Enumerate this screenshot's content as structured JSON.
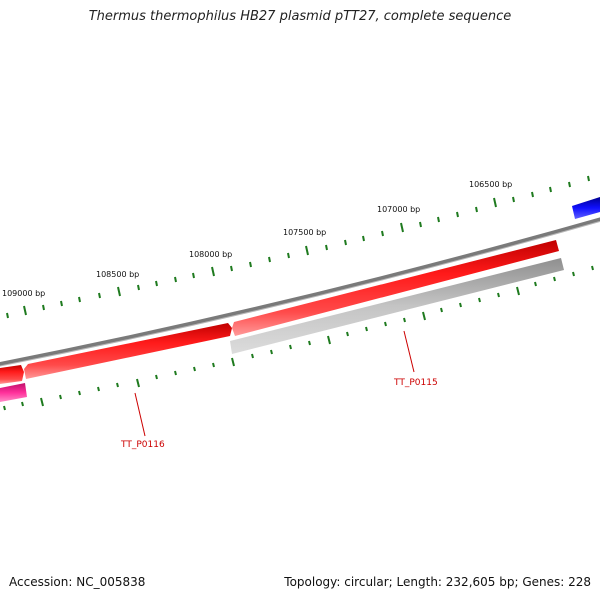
{
  "title": "Thermus thermophilus HB27 plasmid pTT27, complete sequence",
  "accession": "Accession: NC_005838",
  "summary": "Topology: circular; Length: 232,605 bp; Genes: 228",
  "ruler_labels": [
    "106500 bp",
    "107000 bp",
    "107500 bp",
    "108000 bp",
    "108500 bp",
    "109000 bp"
  ],
  "gene_labels": [
    "TT_P0115",
    "TT_P0116"
  ],
  "colors": {
    "backbone": "#7a7a7a",
    "forward_gene": "#ff0000",
    "reverse_gene_gray": "#b0b0b0",
    "reverse_gene_magenta": "#ff2090",
    "blue_gene": "#0000ee",
    "tick": "#1e7a1e",
    "label_line": "#cc0000",
    "label_text": "#cc0000"
  }
}
